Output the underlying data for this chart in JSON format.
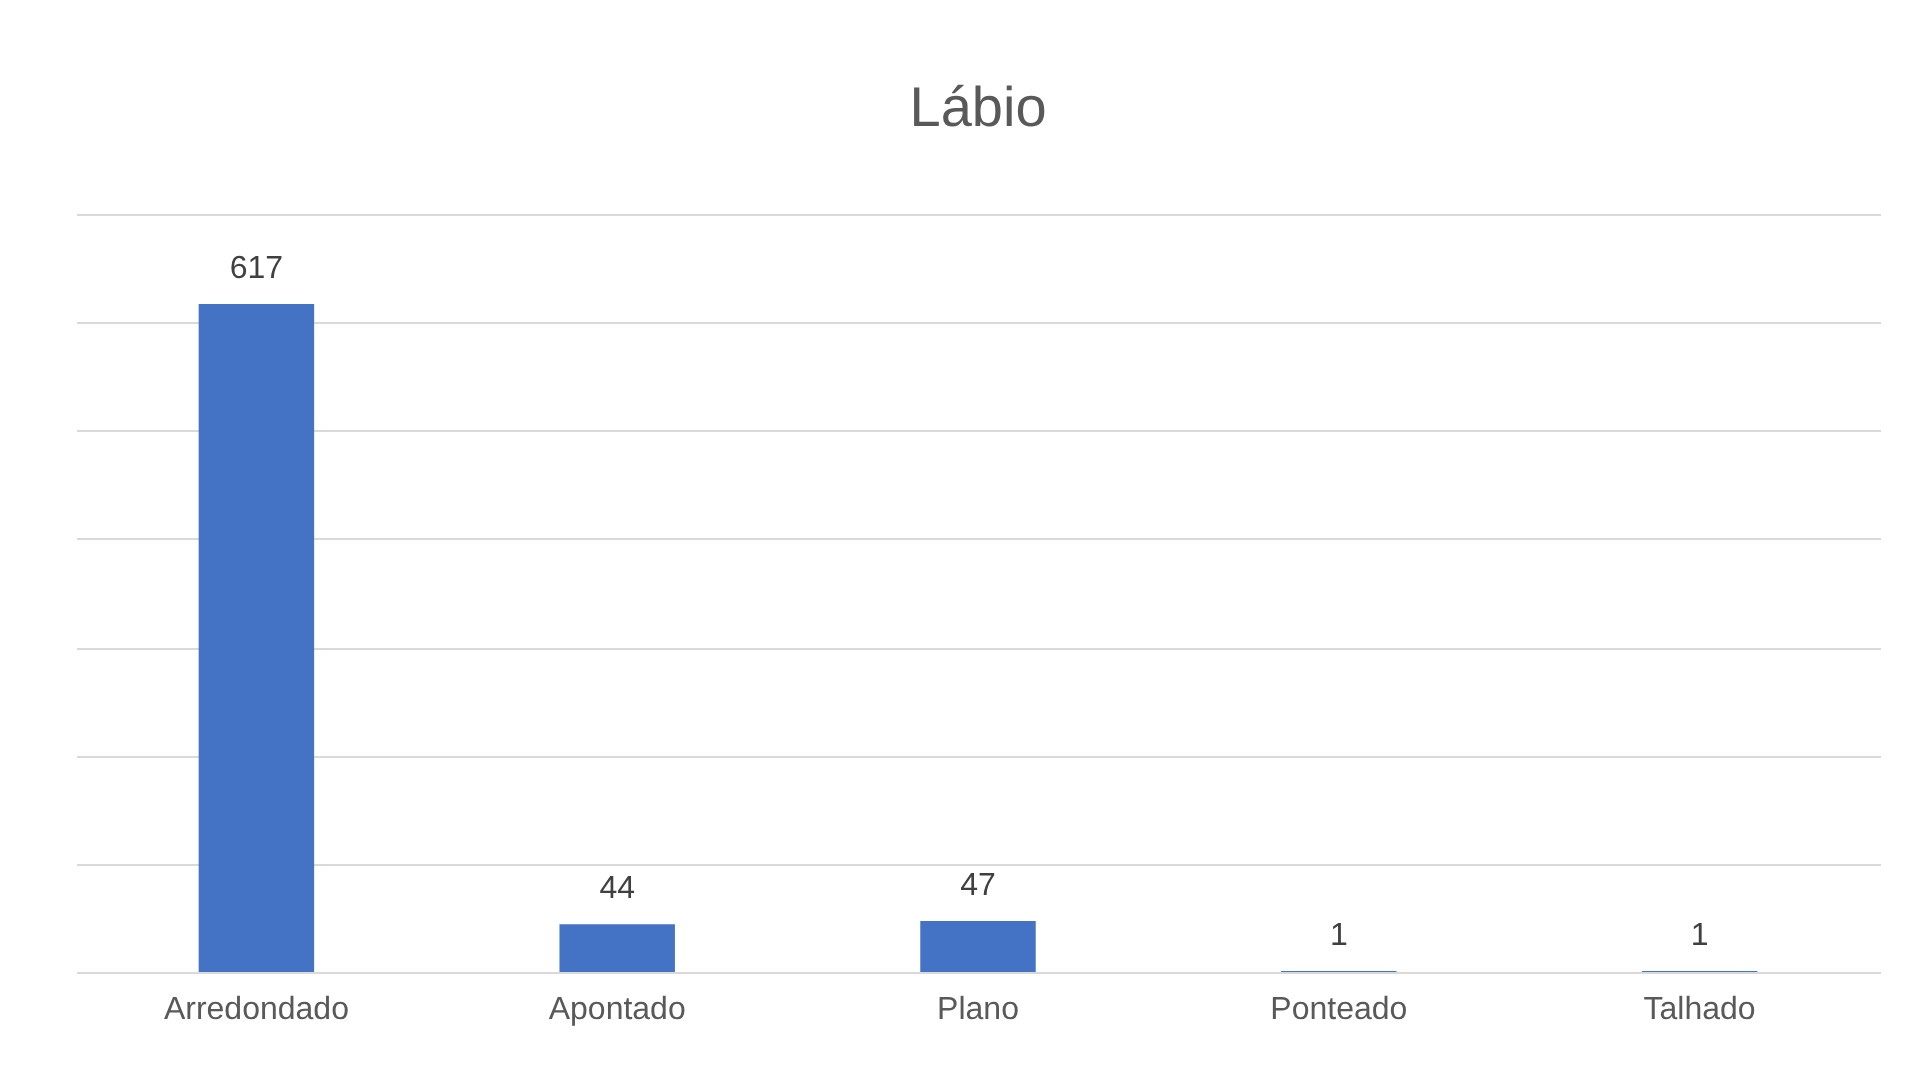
{
  "chart_data": {
    "type": "bar",
    "title": "Lábio",
    "categories": [
      "Arredondado",
      "Apontado",
      "Plano",
      "Ponteado",
      "Talhado"
    ],
    "values": [
      617,
      44,
      47,
      1,
      1
    ],
    "color": "#4472c4",
    "data_labels": true,
    "ylim": [
      0,
      700
    ],
    "yticks": [
      {
        "value": 0,
        "label": null
      },
      {
        "value": 100,
        "label": null
      },
      {
        "value": 200,
        "label": null
      },
      {
        "value": 300,
        "label": null
      },
      {
        "value": 400,
        "label": null
      },
      {
        "value": 500,
        "label": null
      },
      {
        "value": 600,
        "label": null
      },
      {
        "value": 700,
        "label": null
      }
    ],
    "grid": true,
    "tick_labels": "x"
  }
}
